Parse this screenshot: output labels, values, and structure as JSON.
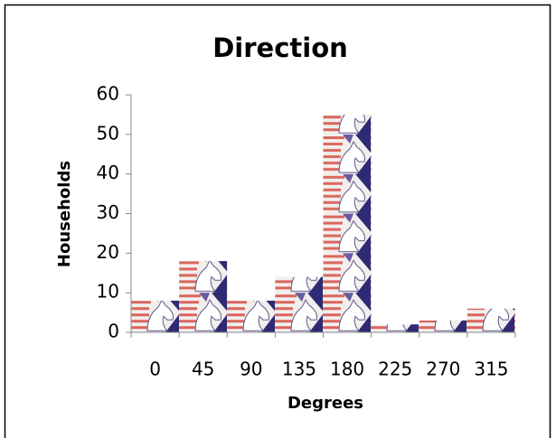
{
  "chart_data": {
    "type": "bar",
    "title": "Direction",
    "x_label": "Degrees",
    "y_label": "Households",
    "categories": [
      "0",
      "45",
      "90",
      "135",
      "180",
      "225",
      "270",
      "315"
    ],
    "values": [
      8,
      18,
      8,
      14,
      55,
      2,
      3,
      6
    ],
    "ylim": [
      0,
      60
    ],
    "yticks": [
      0,
      10,
      20,
      30,
      40,
      50,
      60
    ],
    "grid": false
  }
}
